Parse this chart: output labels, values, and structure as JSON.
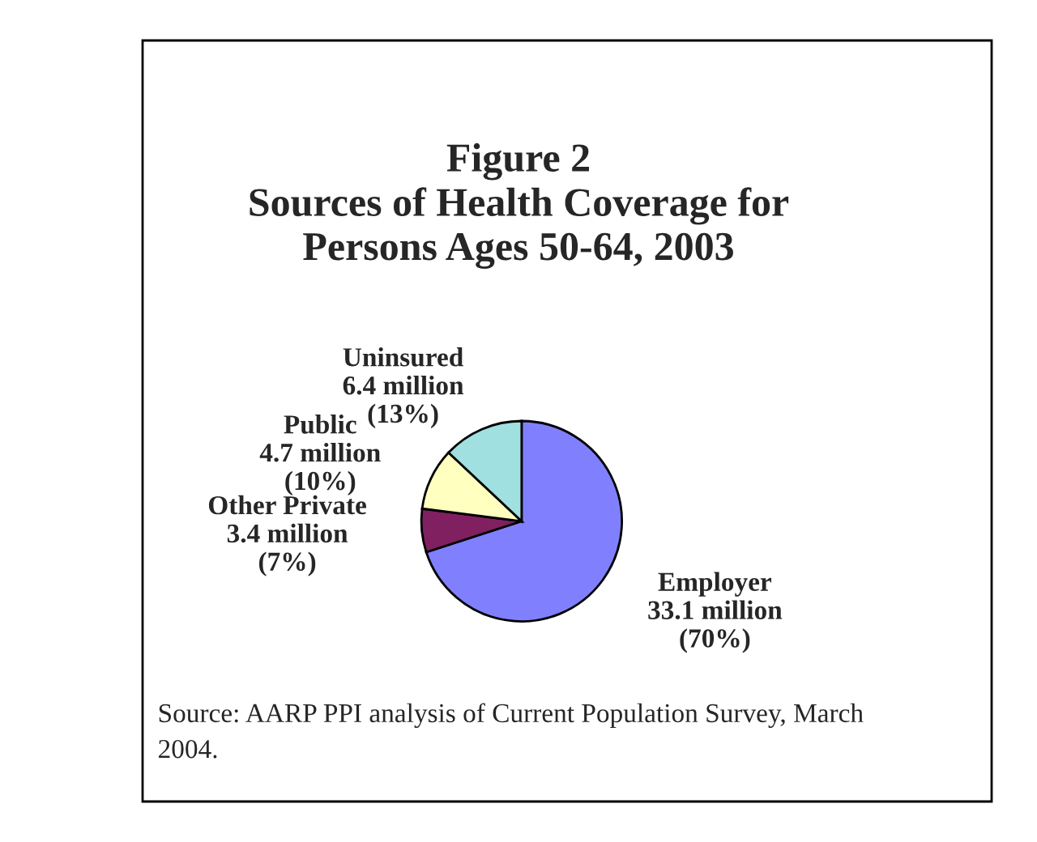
{
  "chart_data": {
    "type": "pie",
    "title": "Figure 2\nSources of Health Coverage for\nPersons Ages 50-64, 2003",
    "categories": [
      "Employer",
      "Other Private",
      "Public",
      "Uninsured"
    ],
    "values": [
      70,
      7,
      10,
      13
    ],
    "value_labels": [
      "33.1 million\n(70%)",
      "3.4 million\n(7%)",
      "4.7 million\n(10%)",
      "6.4 million\n(13%)"
    ],
    "colors": [
      "#8080ff",
      "#802060",
      "#ffffc0",
      "#a0e0e0"
    ],
    "annotations": [
      "Source: AARP PPI analysis of Current Population Survey, March\n2004."
    ],
    "legend": false
  }
}
